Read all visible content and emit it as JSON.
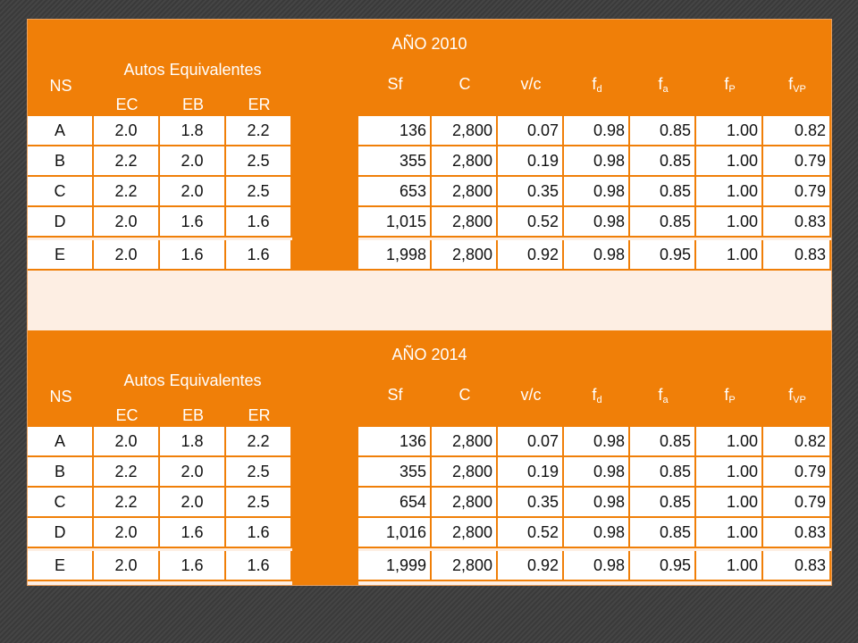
{
  "tables": [
    {
      "title": "AÑO 2010",
      "headers": {
        "ns": "NS",
        "autos": "Autos Equivalentes",
        "ec": "EC",
        "eb": "EB",
        "er": "ER",
        "sf": "Sf",
        "c": "C",
        "vc": "v/c",
        "fd": "f",
        "fd_sub": "d",
        "fa": "f",
        "fa_sub": "a",
        "fp": "f",
        "fp_sub": "P",
        "fvp": "f",
        "fvp_sub": "VP"
      },
      "rows": [
        {
          "ns": "A",
          "ec": "2.0",
          "eb": "1.8",
          "er": "2.2",
          "sf": "136",
          "c": "2,800",
          "vc": "0.07",
          "fd": "0.98",
          "fa": "0.85",
          "fp": "1.00",
          "fvp": "0.82"
        },
        {
          "ns": "B",
          "ec": "2.2",
          "eb": "2.0",
          "er": "2.5",
          "sf": "355",
          "c": "2,800",
          "vc": "0.19",
          "fd": "0.98",
          "fa": "0.85",
          "fp": "1.00",
          "fvp": "0.79"
        },
        {
          "ns": "C",
          "ec": "2.2",
          "eb": "2.0",
          "er": "2.5",
          "sf": "653",
          "c": "2,800",
          "vc": "0.35",
          "fd": "0.98",
          "fa": "0.85",
          "fp": "1.00",
          "fvp": "0.79"
        },
        {
          "ns": "D",
          "ec": "2.0",
          "eb": "1.6",
          "er": "1.6",
          "sf": "1,015",
          "c": "2,800",
          "vc": "0.52",
          "fd": "0.98",
          "fa": "0.85",
          "fp": "1.00",
          "fvp": "0.83"
        },
        {
          "ns": "E",
          "ec": "2.0",
          "eb": "1.6",
          "er": "1.6",
          "sf": "1,998",
          "c": "2,800",
          "vc": "0.92",
          "fd": "0.98",
          "fa": "0.95",
          "fp": "1.00",
          "fvp": "0.83"
        }
      ]
    },
    {
      "title": "AÑO 2014",
      "headers": {
        "ns": "NS",
        "autos": "Autos Equivalentes",
        "ec": "EC",
        "eb": "EB",
        "er": "ER",
        "sf": "Sf",
        "c": "C",
        "vc": "v/c",
        "fd": "f",
        "fd_sub": "d",
        "fa": "f",
        "fa_sub": "a",
        "fp": "f",
        "fp_sub": "P",
        "fvp": "f",
        "fvp_sub": "VP"
      },
      "rows": [
        {
          "ns": "A",
          "ec": "2.0",
          "eb": "1.8",
          "er": "2.2",
          "sf": "136",
          "c": "2,800",
          "vc": "0.07",
          "fd": "0.98",
          "fa": "0.85",
          "fp": "1.00",
          "fvp": "0.82"
        },
        {
          "ns": "B",
          "ec": "2.2",
          "eb": "2.0",
          "er": "2.5",
          "sf": "355",
          "c": "2,800",
          "vc": "0.19",
          "fd": "0.98",
          "fa": "0.85",
          "fp": "1.00",
          "fvp": "0.79"
        },
        {
          "ns": "C",
          "ec": "2.2",
          "eb": "2.0",
          "er": "2.5",
          "sf": "654",
          "c": "2,800",
          "vc": "0.35",
          "fd": "0.98",
          "fa": "0.85",
          "fp": "1.00",
          "fvp": "0.79"
        },
        {
          "ns": "D",
          "ec": "2.0",
          "eb": "1.6",
          "er": "1.6",
          "sf": "1,016",
          "c": "2,800",
          "vc": "0.52",
          "fd": "0.98",
          "fa": "0.85",
          "fp": "1.00",
          "fvp": "0.83"
        },
        {
          "ns": "E",
          "ec": "2.0",
          "eb": "1.6",
          "er": "1.6",
          "sf": "1,999",
          "c": "2,800",
          "vc": "0.92",
          "fd": "0.98",
          "fa": "0.95",
          "fp": "1.00",
          "fvp": "0.83"
        }
      ]
    }
  ],
  "colors": {
    "header_bg": "#F07F08",
    "row_bg": "#FFFFFF",
    "panel_bg": "#FDEEE3",
    "background": "#3A3A3A"
  }
}
